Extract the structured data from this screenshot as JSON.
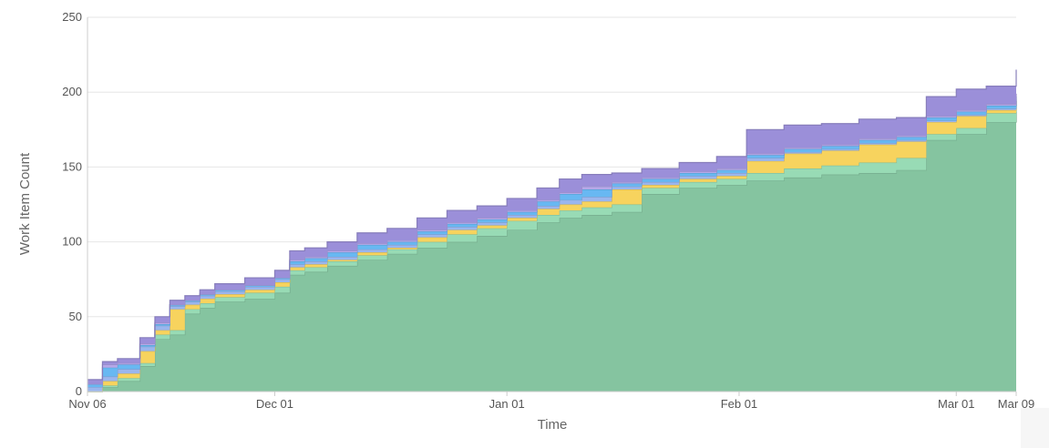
{
  "chart_data": {
    "type": "area",
    "stacked": true,
    "title": "",
    "xlabel": "Time",
    "ylabel": "Work Item Count",
    "ylim": [
      0,
      250
    ],
    "yticks": [
      "0",
      "50",
      "100",
      "150",
      "200",
      "250"
    ],
    "xlim": [
      "2023-11-06",
      "2024-03-09"
    ],
    "xticks": [
      {
        "date": "2023-11-06",
        "label": "Nov 06"
      },
      {
        "date": "2023-12-01",
        "label": "Dec 01"
      },
      {
        "date": "2024-01-01",
        "label": "Jan 01"
      },
      {
        "date": "2024-02-01",
        "label": "Feb 01"
      },
      {
        "date": "2024-03-01",
        "label": "Mar 01"
      },
      {
        "date": "2024-03-09",
        "label": "Mar 09"
      }
    ],
    "grid": true,
    "x": [
      "2023-11-06",
      "2023-11-08",
      "2023-11-10",
      "2023-11-13",
      "2023-11-15",
      "2023-11-17",
      "2023-11-19",
      "2023-11-21",
      "2023-11-23",
      "2023-11-25",
      "2023-11-27",
      "2023-12-01",
      "2023-12-03",
      "2023-12-05",
      "2023-12-08",
      "2023-12-12",
      "2023-12-16",
      "2023-12-20",
      "2023-12-24",
      "2023-12-28",
      "2024-01-01",
      "2024-01-05",
      "2024-01-08",
      "2024-01-11",
      "2024-01-15",
      "2024-01-19",
      "2024-01-24",
      "2024-01-29",
      "2024-02-02",
      "2024-02-07",
      "2024-02-12",
      "2024-02-17",
      "2024-02-22",
      "2024-02-26",
      "2024-03-01",
      "2024-03-05",
      "2024-03-09"
    ],
    "series": [
      {
        "color": "#85c4a0",
        "values": [
          0,
          3,
          7,
          17,
          35,
          38,
          52,
          56,
          60,
          60,
          62,
          66,
          78,
          80,
          84,
          88,
          92,
          96,
          100,
          104,
          108,
          113,
          116,
          118,
          120,
          132,
          136,
          138,
          141,
          143,
          145,
          146,
          148,
          168,
          172,
          180,
          187
        ]
      },
      {
        "color": "#98dbb5",
        "values": [
          0,
          1,
          2,
          2,
          3,
          3,
          3,
          3,
          3,
          3,
          4,
          4,
          3,
          3,
          3,
          3,
          3,
          4,
          5,
          5,
          6,
          5,
          5,
          5,
          5,
          4,
          4,
          4,
          5,
          6,
          6,
          7,
          8,
          4,
          4,
          6,
          7
        ]
      },
      {
        "color": "#f7d35e",
        "values": [
          0,
          3,
          3,
          8,
          3,
          14,
          3,
          3,
          2,
          2,
          2,
          3,
          2,
          2,
          1,
          2,
          1,
          3,
          3,
          2,
          2,
          4,
          4,
          4,
          10,
          2,
          2,
          2,
          8,
          10,
          10,
          12,
          11,
          8,
          8,
          2,
          0
        ]
      },
      {
        "color": "#9ab6ee",
        "values": [
          3,
          3,
          3,
          3,
          3,
          2,
          2,
          2,
          2,
          2,
          2,
          2,
          2,
          2,
          2,
          2,
          2,
          2,
          2,
          2,
          2,
          2,
          3,
          3,
          2,
          2,
          2,
          2,
          2,
          1,
          1,
          1,
          1,
          1,
          1,
          1,
          1
        ]
      },
      {
        "color": "#68b8f2",
        "values": [
          2,
          6,
          3,
          1,
          1,
          1,
          1,
          1,
          1,
          1,
          1,
          1,
          2,
          2,
          3,
          3,
          2,
          2,
          2,
          2,
          2,
          3,
          4,
          5,
          2,
          2,
          2,
          2,
          2,
          2,
          2,
          2,
          2,
          2,
          2,
          2,
          2
        ]
      },
      {
        "color": "#b6a8e8",
        "values": [
          0,
          2,
          1,
          1,
          1,
          0,
          0,
          0,
          0,
          0,
          0,
          0,
          1,
          1,
          1,
          1,
          1,
          1,
          1,
          1,
          1,
          1,
          1,
          2,
          1,
          1,
          1,
          1,
          1,
          1,
          1,
          1,
          1,
          1,
          1,
          1,
          2
        ]
      },
      {
        "color": "#9b8fd9",
        "values": [
          3,
          2,
          3,
          4,
          4,
          3,
          3,
          3,
          4,
          4,
          5,
          5,
          6,
          6,
          6,
          7,
          8,
          8,
          8,
          8,
          8,
          8,
          9,
          8,
          6,
          6,
          6,
          8,
          16,
          15,
          14,
          13,
          12,
          13,
          14,
          12,
          16
        ]
      }
    ]
  }
}
